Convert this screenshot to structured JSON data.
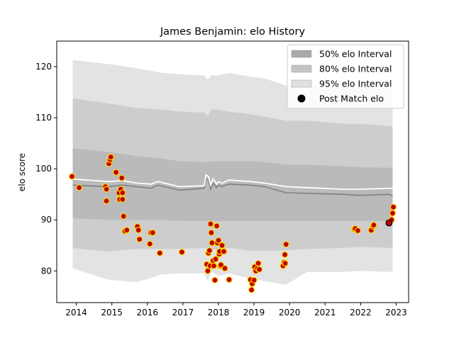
{
  "chart_data": {
    "type": "scatter",
    "title": "James Benjamin: elo History",
    "xlabel": "",
    "ylabel": "elo score",
    "xlim": [
      2013.45,
      2023.35
    ],
    "ylim": [
      73.8,
      125.0
    ],
    "x_ticks": [
      "2014",
      "2015",
      "2016",
      "2017",
      "2018",
      "2019",
      "2020",
      "2021",
      "2022",
      "2023"
    ],
    "y_ticks": [
      "80",
      "90",
      "100",
      "110",
      "120"
    ],
    "grid": false,
    "legend_position": "top-right",
    "legend": [
      {
        "label": "50% elo Interval",
        "kind": "band",
        "color": "#a9a9a9"
      },
      {
        "label": "80% elo Interval",
        "kind": "band",
        "color": "#c4c4c4"
      },
      {
        "label": "95% elo Interval",
        "kind": "band",
        "color": "#e0e0e0"
      },
      {
        "label": "Post Match elo",
        "kind": "marker",
        "color": "#000000"
      }
    ],
    "colors": {
      "band_95": "#e3e3e3",
      "band_80": "#cdcdcd",
      "band_50": "#bababa",
      "mean_line": "#ffffff",
      "median_line": "#808080",
      "point_face": "#c00000",
      "point_edge": "#ffd700",
      "last_point_face": "#c00000",
      "last_point_edge": "#000000"
    },
    "band_x": [
      2013.9,
      2014.9,
      2015.7,
      2016.4,
      2016.9,
      2017.6,
      2017.7,
      2017.8,
      2018.0,
      2018.3,
      2018.9,
      2019.3,
      2019.9,
      2020.5,
      2021.5,
      2022.0,
      2022.9
    ],
    "band_95": {
      "lower": [
        80.5,
        78.3,
        77.8,
        79.3,
        79.5,
        79.5,
        78.0,
        79.8,
        79.0,
        79.5,
        78.5,
        78.0,
        77.3,
        79.8,
        79.8,
        80.0,
        79.8
      ],
      "upper": [
        121.3,
        120.5,
        119.7,
        118.8,
        118.5,
        118.3,
        117.5,
        118.3,
        118.3,
        118.8,
        118.0,
        117.7,
        116.3,
        116.3,
        116.0,
        116.0,
        115.8
      ]
    },
    "band_80": {
      "lower": [
        84.5,
        83.8,
        84.3,
        84.3,
        84.3,
        84.5,
        84.3,
        84.3,
        84.0,
        84.5,
        84.0,
        84.0,
        84.0,
        84.3,
        84.5,
        84.7,
        84.5
      ],
      "upper": [
        113.8,
        112.8,
        111.9,
        111.6,
        111.2,
        111.0,
        110.3,
        111.6,
        111.6,
        111.2,
        110.7,
        110.2,
        109.4,
        109.4,
        108.8,
        108.8,
        108.3
      ]
    },
    "band_50": {
      "lower": [
        90.3,
        90.0,
        90.0,
        90.0,
        89.8,
        89.8,
        89.8,
        89.8,
        89.8,
        89.8,
        89.8,
        89.8,
        89.8,
        89.8,
        89.8,
        89.8,
        89.8
      ],
      "upper": [
        104.0,
        103.3,
        102.5,
        102.0,
        101.5,
        101.3,
        101.3,
        101.5,
        101.5,
        101.5,
        101.5,
        101.3,
        100.8,
        100.8,
        100.5,
        100.3,
        100.2
      ]
    },
    "mean_line": {
      "x": [
        2013.9,
        2014.9,
        2015.3,
        2015.7,
        2016.1,
        2016.3,
        2016.9,
        2017.6,
        2017.65,
        2017.72,
        2017.78,
        2017.85,
        2017.95,
        2018.0,
        2018.1,
        2018.2,
        2018.3,
        2018.9,
        2019.3,
        2019.9,
        2020.5,
        2021.5,
        2022.0,
        2022.9
      ],
      "y": [
        98.0,
        97.5,
        97.7,
        97.2,
        97.0,
        97.5,
        96.5,
        96.7,
        98.8,
        98.5,
        96.8,
        98.0,
        97.0,
        97.5,
        97.2,
        97.5,
        97.8,
        97.5,
        97.2,
        96.5,
        96.3,
        96.0,
        96.0,
        96.2
      ]
    },
    "median_line": {
      "x": [
        2013.9,
        2014.9,
        2015.3,
        2015.7,
        2016.1,
        2016.3,
        2016.9,
        2017.6,
        2017.65,
        2017.72,
        2017.78,
        2017.85,
        2017.95,
        2018.0,
        2018.1,
        2018.2,
        2018.3,
        2018.9,
        2019.3,
        2019.9,
        2020.5,
        2021.5,
        2022.0,
        2022.8,
        2022.9
      ],
      "y": [
        96.8,
        96.5,
        96.8,
        96.5,
        96.2,
        96.8,
        95.8,
        96.2,
        98.0,
        97.8,
        96.0,
        97.2,
        96.3,
        96.8,
        96.5,
        96.8,
        97.0,
        96.8,
        96.5,
        95.3,
        95.2,
        95.0,
        94.8,
        95.0,
        94.7
      ]
    },
    "points": [
      {
        "x": 2013.88,
        "y": 98.5
      },
      {
        "x": 2014.08,
        "y": 96.3
      },
      {
        "x": 2014.82,
        "y": 96.5
      },
      {
        "x": 2014.85,
        "y": 96.0
      },
      {
        "x": 2014.85,
        "y": 93.7
      },
      {
        "x": 2014.92,
        "y": 101.0
      },
      {
        "x": 2014.95,
        "y": 101.8
      },
      {
        "x": 2014.97,
        "y": 102.3
      },
      {
        "x": 2015.12,
        "y": 99.3
      },
      {
        "x": 2015.2,
        "y": 95.3
      },
      {
        "x": 2015.22,
        "y": 94.0
      },
      {
        "x": 2015.25,
        "y": 96.0
      },
      {
        "x": 2015.28,
        "y": 98.2
      },
      {
        "x": 2015.3,
        "y": 95.3
      },
      {
        "x": 2015.3,
        "y": 94.0
      },
      {
        "x": 2015.33,
        "y": 90.7
      },
      {
        "x": 2015.37,
        "y": 87.8
      },
      {
        "x": 2015.42,
        "y": 88.0
      },
      {
        "x": 2015.72,
        "y": 88.7
      },
      {
        "x": 2015.75,
        "y": 88.0
      },
      {
        "x": 2015.78,
        "y": 86.2
      },
      {
        "x": 2016.07,
        "y": 85.3
      },
      {
        "x": 2016.1,
        "y": 87.5
      },
      {
        "x": 2016.15,
        "y": 87.5
      },
      {
        "x": 2016.35,
        "y": 83.5
      },
      {
        "x": 2016.97,
        "y": 83.7
      },
      {
        "x": 2017.67,
        "y": 81.3
      },
      {
        "x": 2017.7,
        "y": 80.0
      },
      {
        "x": 2017.72,
        "y": 83.5
      },
      {
        "x": 2017.75,
        "y": 84.0
      },
      {
        "x": 2017.77,
        "y": 81.0
      },
      {
        "x": 2017.78,
        "y": 89.2
      },
      {
        "x": 2017.8,
        "y": 87.5
      },
      {
        "x": 2017.82,
        "y": 85.5
      },
      {
        "x": 2017.85,
        "y": 82.0
      },
      {
        "x": 2017.87,
        "y": 81.0
      },
      {
        "x": 2017.9,
        "y": 78.2
      },
      {
        "x": 2017.92,
        "y": 82.3
      },
      {
        "x": 2017.95,
        "y": 88.8
      },
      {
        "x": 2017.97,
        "y": 85.5
      },
      {
        "x": 2018.0,
        "y": 86.0
      },
      {
        "x": 2018.02,
        "y": 83.3
      },
      {
        "x": 2018.03,
        "y": 83.8
      },
      {
        "x": 2018.05,
        "y": 81.0
      },
      {
        "x": 2018.07,
        "y": 81.2
      },
      {
        "x": 2018.1,
        "y": 85.0
      },
      {
        "x": 2018.15,
        "y": 83.8
      },
      {
        "x": 2018.18,
        "y": 80.5
      },
      {
        "x": 2018.3,
        "y": 78.3
      },
      {
        "x": 2018.9,
        "y": 78.3
      },
      {
        "x": 2018.93,
        "y": 76.3
      },
      {
        "x": 2018.95,
        "y": 77.5
      },
      {
        "x": 2019.0,
        "y": 78.2
      },
      {
        "x": 2019.02,
        "y": 80.8
      },
      {
        "x": 2019.05,
        "y": 80.0
      },
      {
        "x": 2019.1,
        "y": 80.5
      },
      {
        "x": 2019.12,
        "y": 81.5
      },
      {
        "x": 2019.15,
        "y": 80.3
      },
      {
        "x": 2019.82,
        "y": 81.0
      },
      {
        "x": 2019.85,
        "y": 81.7
      },
      {
        "x": 2019.87,
        "y": 83.2
      },
      {
        "x": 2019.9,
        "y": 85.2
      },
      {
        "x": 2019.88,
        "y": 81.5
      },
      {
        "x": 2021.82,
        "y": 88.2
      },
      {
        "x": 2021.85,
        "y": 88.3
      },
      {
        "x": 2021.92,
        "y": 87.9
      },
      {
        "x": 2022.3,
        "y": 88.0
      },
      {
        "x": 2022.35,
        "y": 88.7
      },
      {
        "x": 2022.37,
        "y": 89.0
      },
      {
        "x": 2022.8,
        "y": 89.5
      },
      {
        "x": 2022.87,
        "y": 90.0
      },
      {
        "x": 2022.9,
        "y": 91.3
      },
      {
        "x": 2022.92,
        "y": 92.5
      }
    ],
    "last_point": {
      "x": 2022.8,
      "y": 89.4
    }
  }
}
